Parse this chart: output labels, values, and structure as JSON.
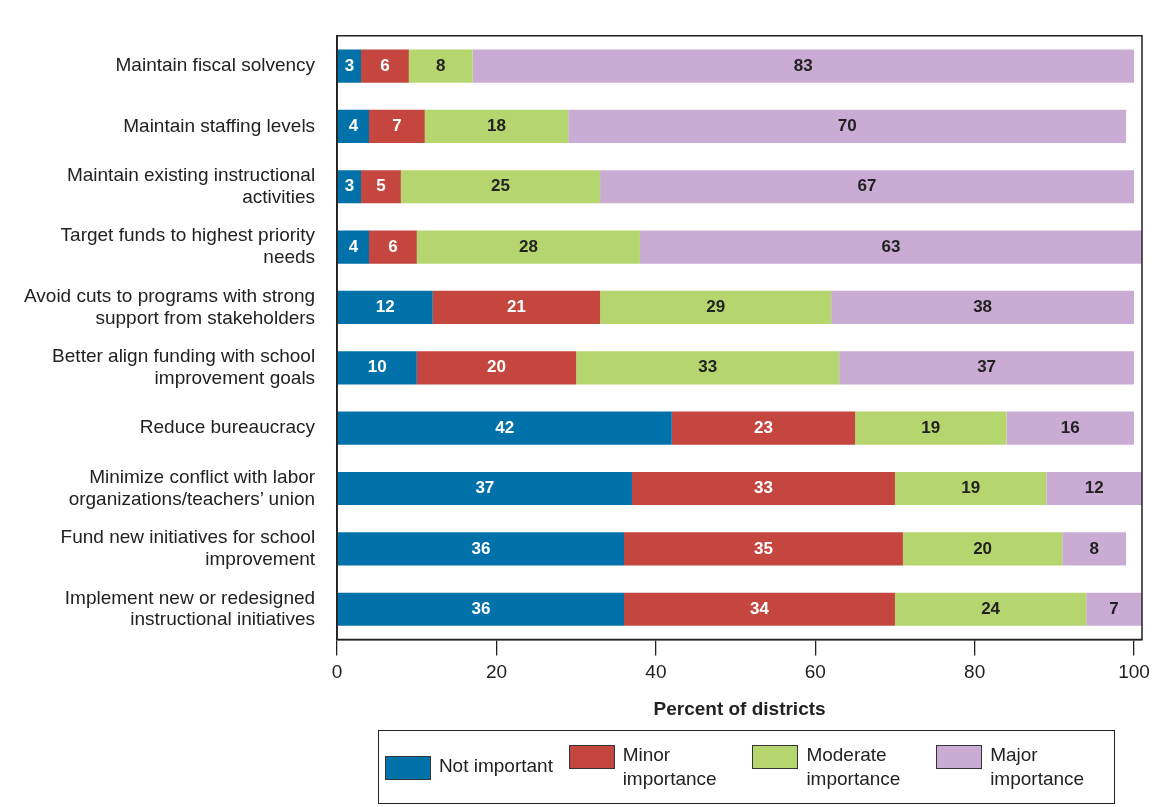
{
  "chart_data": {
    "type": "bar",
    "orientation": "horizontal",
    "stacked": true,
    "data_labels": true,
    "legend": "bottom",
    "grid": false,
    "xlabel": "Percent of districts",
    "xlim": [
      0,
      101
    ],
    "xticks": [
      0,
      20,
      40,
      60,
      80,
      100
    ],
    "categories": [
      "Maintain fiscal solvency",
      "Maintain staffing levels",
      "Maintain existing instructional activities",
      "Target funds to highest priority needs",
      "Avoid cuts to programs with strong support from stakeholders",
      "Better align funding with school improvement goals",
      "Reduce bureaucracy",
      "Minimize conflict with labor organizations/teachers’ union",
      "Fund new initiatives for school improvement",
      "Implement new or redesigned instructional initiatives"
    ],
    "series": [
      {
        "name": "Not important",
        "color": "#0071a9",
        "values": [
          3,
          4,
          3,
          4,
          12,
          10,
          42,
          37,
          36,
          36
        ]
      },
      {
        "name": "Minor importance",
        "color": "#c4463f",
        "values": [
          6,
          7,
          5,
          6,
          21,
          20,
          23,
          33,
          35,
          34
        ]
      },
      {
        "name": "Moderate importance",
        "color": "#b5d66f",
        "values": [
          8,
          18,
          25,
          28,
          29,
          33,
          19,
          19,
          20,
          24
        ]
      },
      {
        "name": "Major importance",
        "color": "#c9abd3",
        "values": [
          83,
          70,
          67,
          63,
          38,
          37,
          16,
          12,
          8,
          7
        ]
      }
    ]
  }
}
